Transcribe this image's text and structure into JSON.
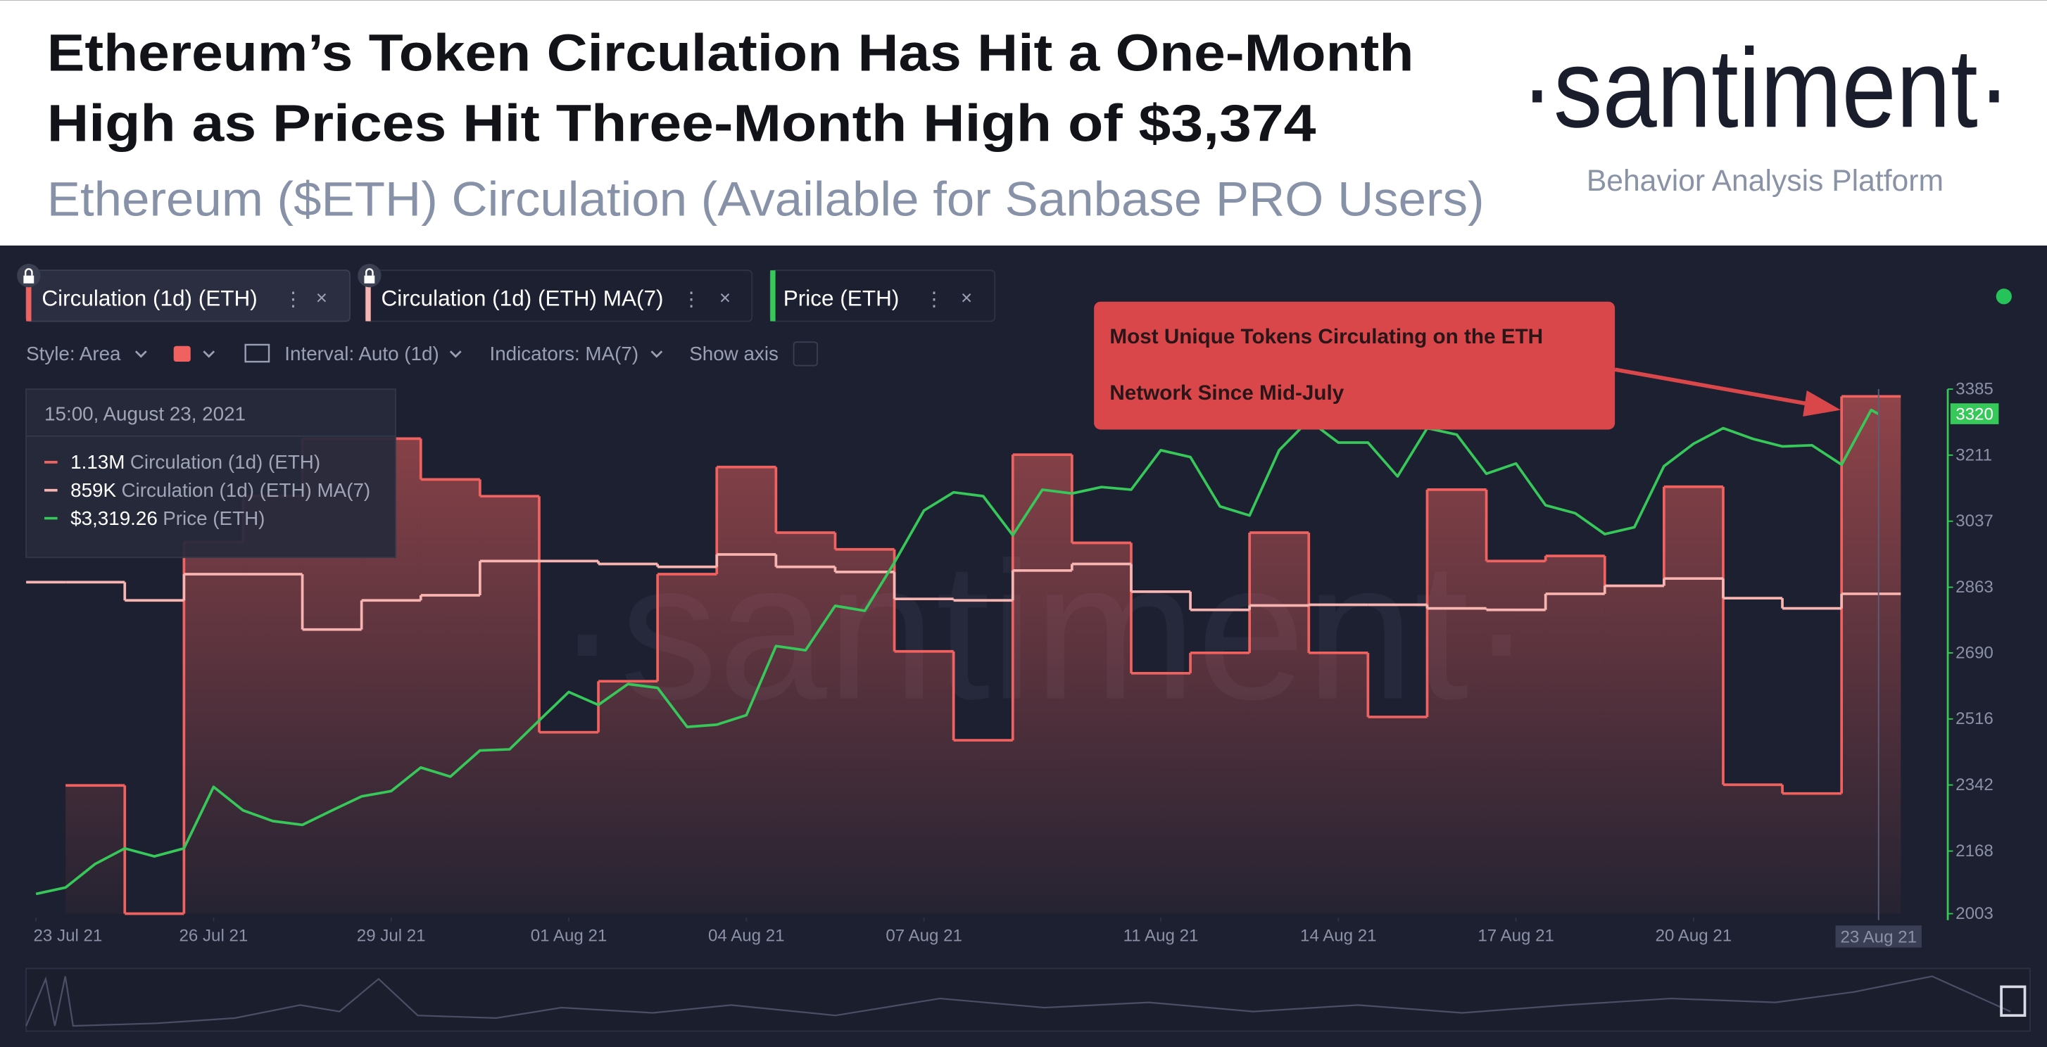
{
  "brand": {
    "name": "·santiment·",
    "tagline": "Behavior Analysis Platform"
  },
  "toolbar": [
    "Style: Area",
    "Interval: Auto (1d)",
    "Indicators: MA(7)",
    "Show axis"
  ],
  "tooltip": {
    "date": "15:00, August 23, 2021",
    "values": [
      "1.13M",
      "859K",
      "$3,319.26"
    ]
  },
  "chart_data": {
    "type": "area",
    "title": [
      "Ethereum’s Token Circulation Has Hit a One-Month",
      "High as Prices Hit Three-Month High of $3,374"
    ],
    "subtitle": "Ethereum ($ETH) Circulation (Available for Sanbase PRO Users)",
    "annotation": [
      "Most Unique Tokens Circulating on the ETH",
      "Network Since Mid-July"
    ],
    "x": [
      "2021-07-23",
      "2021-07-24",
      "2021-07-25",
      "2021-07-26",
      "2021-07-27",
      "2021-07-28",
      "2021-07-29",
      "2021-07-30",
      "2021-07-31",
      "2021-08-01",
      "2021-08-02",
      "2021-08-03",
      "2021-08-04",
      "2021-08-05",
      "2021-08-06",
      "2021-08-07",
      "2021-08-08",
      "2021-08-09",
      "2021-08-10",
      "2021-08-11",
      "2021-08-12",
      "2021-08-13",
      "2021-08-14",
      "2021-08-15",
      "2021-08-16",
      "2021-08-17",
      "2021-08-18",
      "2021-08-19",
      "2021-08-20",
      "2021-08-21",
      "2021-08-22",
      "2021-08-23"
    ],
    "series": [
      {
        "name": "Circulation (1d) (ETH)",
        "type": "area",
        "step": true,
        "color": "#f0625f",
        "values": [
          null,
          596000,
          420000,
          930000,
          993000,
          1072000,
          1072000,
          1016000,
          993000,
          669000,
          739000,
          886000,
          1033000,
          943000,
          920000,
          780000,
          658000,
          1050000,
          929000,
          750000,
          778000,
          943000,
          778000,
          690000,
          1002000,
          904000,
          911000,
          870000,
          1006000,
          597000,
          585000,
          1130000
        ]
      },
      {
        "name": "Circulation (1d) (ETH) MA(7)",
        "type": "line",
        "step": true,
        "color": "#f8b4b0",
        "values": [
          875000,
          875000,
          850000,
          886000,
          886000,
          810000,
          850000,
          857000,
          904000,
          904000,
          900000,
          896000,
          913000,
          896000,
          889000,
          852000,
          850000,
          891000,
          900000,
          862000,
          837000,
          843000,
          844000,
          844000,
          839000,
          837000,
          859000,
          870000,
          880000,
          853000,
          839000,
          859000
        ]
      },
      {
        "name": "Price (ETH)",
        "type": "line",
        "axis": "y2",
        "color": "#37c85a",
        "x": [
          "2021-07-23 12:00",
          "2021-07-24 00:00",
          "2021-07-24 12:00",
          "2021-07-25 00:00",
          "2021-07-25 12:00",
          "2021-07-26 00:00",
          "2021-07-26 12:00",
          "2021-07-27 00:00",
          "2021-07-27 12:00",
          "2021-07-28 00:00",
          "2021-07-28 12:00",
          "2021-07-29 00:00",
          "2021-07-29 12:00",
          "2021-07-30 00:00",
          "2021-07-30 12:00",
          "2021-07-31 00:00",
          "2021-07-31 12:00",
          "2021-08-01 00:00",
          "2021-08-01 12:00",
          "2021-08-02 00:00",
          "2021-08-02 12:00",
          "2021-08-03 00:00",
          "2021-08-03 12:00",
          "2021-08-04 00:00",
          "2021-08-04 12:00",
          "2021-08-05 00:00",
          "2021-08-05 12:00",
          "2021-08-06 00:00",
          "2021-08-06 12:00",
          "2021-08-07 00:00",
          "2021-08-07 12:00",
          "2021-08-08 00:00",
          "2021-08-08 12:00",
          "2021-08-09 00:00",
          "2021-08-09 12:00",
          "2021-08-10 00:00",
          "2021-08-10 12:00",
          "2021-08-11 00:00",
          "2021-08-11 12:00",
          "2021-08-12 00:00",
          "2021-08-12 12:00",
          "2021-08-13 00:00",
          "2021-08-13 12:00",
          "2021-08-14 00:00",
          "2021-08-14 12:00",
          "2021-08-15 00:00",
          "2021-08-15 12:00",
          "2021-08-16 00:00",
          "2021-08-16 12:00",
          "2021-08-17 00:00",
          "2021-08-17 12:00",
          "2021-08-18 00:00",
          "2021-08-18 12:00",
          "2021-08-19 00:00",
          "2021-08-19 12:00",
          "2021-08-20 00:00",
          "2021-08-20 12:00",
          "2021-08-21 00:00",
          "2021-08-21 12:00",
          "2021-08-22 00:00",
          "2021-08-22 12:00",
          "2021-08-23 00:00",
          "2021-08-23 12:00",
          "2021-08-23 15:00"
        ],
        "values": [
          2055,
          2072,
          2134,
          2175,
          2154,
          2175,
          2337,
          2275,
          2247,
          2237,
          2275,
          2312,
          2326,
          2388,
          2364,
          2433,
          2436,
          2512,
          2587,
          2553,
          2608,
          2598,
          2495,
          2501,
          2526,
          2708,
          2697,
          2814,
          2801,
          2928,
          3065,
          3113,
          3103,
          3000,
          3120,
          3110,
          3127,
          3120,
          3224,
          3206,
          3076,
          3052,
          3224,
          3303,
          3244,
          3244,
          3155,
          3282,
          3265,
          3162,
          3189,
          3079,
          3058,
          3003,
          3021,
          3182,
          3241,
          3282,
          3254,
          3234,
          3237,
          3186,
          3330,
          3319.26
        ]
      }
    ],
    "xlim": [
      "2021-07-23 08:00",
      "2021-08-24 18:00"
    ],
    "xticks": [
      {
        "value": "2021-07-23",
        "label": "23 Jul 21"
      },
      {
        "value": "2021-07-26",
        "label": "26 Jul 21"
      },
      {
        "value": "2021-07-29",
        "label": "29 Jul 21"
      },
      {
        "value": "2021-08-01",
        "label": "01 Aug 21"
      },
      {
        "value": "2021-08-04",
        "label": "04 Aug 21"
      },
      {
        "value": "2021-08-07",
        "label": "07 Aug 21"
      },
      {
        "value": "2021-08-11",
        "label": "11 Aug 21"
      },
      {
        "value": "2021-08-14",
        "label": "14 Aug 21"
      },
      {
        "value": "2021-08-17",
        "label": "17 Aug 21"
      },
      {
        "value": "2021-08-20",
        "label": "20 Aug 21"
      }
    ],
    "ylim": [
      420000,
      1140000
    ],
    "y2lim": [
      2003,
      3385
    ],
    "y2ticks": [
      2003,
      2168,
      2342,
      2516,
      2690,
      2863,
      3037,
      3211,
      3385
    ],
    "price_marker": 3320,
    "crosshair": {
      "x": "2021-08-23 15:00",
      "label": "23 Aug 21"
    }
  }
}
